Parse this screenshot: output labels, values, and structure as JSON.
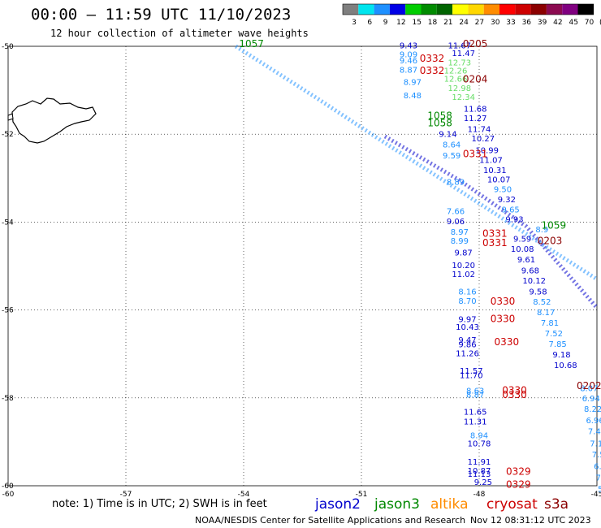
{
  "header": {
    "title": "00:00 – 11:59 UTC 11/10/2023",
    "subtitle": "12 hour collection of altimeter wave heights"
  },
  "colorbar": {
    "labels": [
      "3",
      "6",
      "9",
      "12",
      "15",
      "18",
      "21",
      "24",
      "27",
      "30",
      "33",
      "36",
      "39",
      "42",
      "45",
      "70",
      "(ft)"
    ],
    "colors": [
      "#7f7f7f",
      "#00e5ee",
      "#1e90ff",
      "#0000e6",
      "#00cd00",
      "#008b00",
      "#006400",
      "#ffff00",
      "#ffd700",
      "#ff8c00",
      "#ff0000",
      "#cd0000",
      "#8b0000",
      "#8b0a50",
      "#800080",
      "#000000"
    ]
  },
  "footer": {
    "note": "note:  1) Time is in UTC;  2) SWH is in feet",
    "credit": "NOAA/NESDIS Center for Satellite Applications and Research",
    "timestamp": "Nov 12 08:31:12 UTC 2023",
    "satellites": [
      {
        "name": "jason2",
        "color": "#0000cc"
      },
      {
        "name": "jason3",
        "color": "#008800"
      },
      {
        "name": "altika",
        "color": "#ff8c00"
      },
      {
        "name": "cryosat",
        "color": "#cc0000"
      },
      {
        "name": "s3a",
        "color": "#8b0000"
      }
    ]
  },
  "chart_data": {
    "type": "scatter",
    "title": "00:00 – 11:59 UTC 11/10/2023",
    "xlim": [
      -60,
      -45
    ],
    "ylim": [
      -60,
      -50
    ],
    "xticks": [
      -60,
      -57,
      -54,
      -51,
      -48,
      -45
    ],
    "yticks": [
      -60,
      -58,
      -56,
      -54,
      -52,
      -50
    ],
    "tick_labels_x": [
      "-60",
      "-57",
      "-54",
      "-51",
      "-48",
      "-45"
    ],
    "tick_labels_y": [
      "-60",
      "-58",
      "-56",
      "-54",
      "-52",
      "-50"
    ],
    "grid": true,
    "point_labels": [
      {
        "x": -49.8,
        "y": -50.05,
        "text": "9.43",
        "color": "#0000cc"
      },
      {
        "x": -48.5,
        "y": -50.05,
        "text": "11.67",
        "color": "#0000cc"
      },
      {
        "x": -48.4,
        "y": -50.22,
        "text": "11.47",
        "color": "#0000cc"
      },
      {
        "x": -49.8,
        "y": -50.25,
        "text": "9.09",
        "color": "#1e90ff"
      },
      {
        "x": -49.8,
        "y": -50.39,
        "text": "9.46",
        "color": "#1e90ff"
      },
      {
        "x": -49.8,
        "y": -50.6,
        "text": "8.87",
        "color": "#1e90ff"
      },
      {
        "x": -49.7,
        "y": -50.88,
        "text": "8.97",
        "color": "#1e90ff"
      },
      {
        "x": -49.7,
        "y": -51.18,
        "text": "8.48",
        "color": "#1e90ff"
      },
      {
        "x": -48.5,
        "y": -50.43,
        "text": "12.73",
        "color": "#66dd66"
      },
      {
        "x": -48.6,
        "y": -50.62,
        "text": "12.26",
        "color": "#66dd66"
      },
      {
        "x": -48.6,
        "y": -50.8,
        "text": "12.66",
        "color": "#66dd66"
      },
      {
        "x": -48.5,
        "y": -51.02,
        "text": "12.98",
        "color": "#66dd66"
      },
      {
        "x": -48.4,
        "y": -51.22,
        "text": "12.34",
        "color": "#66dd66"
      },
      {
        "x": -48.1,
        "y": -51.49,
        "text": "11.68",
        "color": "#0000cc"
      },
      {
        "x": -48.1,
        "y": -51.7,
        "text": "11.27",
        "color": "#0000cc"
      },
      {
        "x": -48.0,
        "y": -51.95,
        "text": "11.74",
        "color": "#0000cc"
      },
      {
        "x": -47.9,
        "y": -52.16,
        "text": "10.27",
        "color": "#0000cc"
      },
      {
        "x": -47.8,
        "y": -52.43,
        "text": "10.99",
        "color": "#0000cc"
      },
      {
        "x": -47.7,
        "y": -52.65,
        "text": "11.07",
        "color": "#0000cc"
      },
      {
        "x": -47.6,
        "y": -52.88,
        "text": "10.31",
        "color": "#0000cc"
      },
      {
        "x": -47.5,
        "y": -53.1,
        "text": "10.07",
        "color": "#0000cc"
      },
      {
        "x": -47.4,
        "y": -53.32,
        "text": "9.50",
        "color": "#1e90ff"
      },
      {
        "x": -47.3,
        "y": -53.55,
        "text": "9.32",
        "color": "#0000cc"
      },
      {
        "x": -47.2,
        "y": -53.78,
        "text": "9.65",
        "color": "#1e90ff"
      },
      {
        "x": -47.1,
        "y": -54.0,
        "text": "9.93",
        "color": "#0000cc"
      },
      {
        "x": -46.4,
        "y": -54.23,
        "text": "8.9",
        "color": "#1e90ff"
      },
      {
        "x": -46.9,
        "y": -54.45,
        "text": "9.59",
        "color": "#0000cc"
      },
      {
        "x": -46.9,
        "y": -54.68,
        "text": "10.08",
        "color": "#0000cc"
      },
      {
        "x": -46.8,
        "y": -54.92,
        "text": "9.61",
        "color": "#0000cc"
      },
      {
        "x": -46.7,
        "y": -55.17,
        "text": "9.68",
        "color": "#0000cc"
      },
      {
        "x": -46.6,
        "y": -55.4,
        "text": "10.12",
        "color": "#0000cc"
      },
      {
        "x": -46.5,
        "y": -55.65,
        "text": "9.58",
        "color": "#0000cc"
      },
      {
        "x": -46.4,
        "y": -55.88,
        "text": "8.52",
        "color": "#1e90ff"
      },
      {
        "x": -46.3,
        "y": -56.12,
        "text": "8.17",
        "color": "#1e90ff"
      },
      {
        "x": -46.2,
        "y": -56.36,
        "text": "7.81",
        "color": "#1e90ff"
      },
      {
        "x": -46.1,
        "y": -56.6,
        "text": "7.52",
        "color": "#1e90ff"
      },
      {
        "x": -46.0,
        "y": -56.84,
        "text": "7.85",
        "color": "#1e90ff"
      },
      {
        "x": -45.9,
        "y": -57.08,
        "text": "9.18",
        "color": "#0000cc"
      },
      {
        "x": -45.8,
        "y": -57.32,
        "text": "10.68",
        "color": "#0000cc"
      },
      {
        "x": -48.8,
        "y": -52.06,
        "text": "9.14",
        "color": "#0000cc"
      },
      {
        "x": -48.7,
        "y": -52.3,
        "text": "8.64",
        "color": "#1e90ff"
      },
      {
        "x": -48.7,
        "y": -52.55,
        "text": "9.59",
        "color": "#1e90ff"
      },
      {
        "x": -48.6,
        "y": -53.15,
        "text": "8.89",
        "color": "#1e90ff"
      },
      {
        "x": -48.6,
        "y": -53.82,
        "text": "7.66",
        "color": "#1e90ff"
      },
      {
        "x": -48.6,
        "y": -54.05,
        "text": "9.06",
        "color": "#0000cc"
      },
      {
        "x": -48.5,
        "y": -54.29,
        "text": "8.97",
        "color": "#1e90ff"
      },
      {
        "x": -48.5,
        "y": -54.49,
        "text": "8.99",
        "color": "#1e90ff"
      },
      {
        "x": -48.4,
        "y": -54.76,
        "text": "9.87",
        "color": "#0000cc"
      },
      {
        "x": -48.4,
        "y": -55.05,
        "text": "10.20",
        "color": "#0000cc"
      },
      {
        "x": -48.4,
        "y": -55.25,
        "text": "11.02",
        "color": "#0000cc"
      },
      {
        "x": -48.3,
        "y": -55.65,
        "text": "8.16",
        "color": "#1e90ff"
      },
      {
        "x": -48.3,
        "y": -55.86,
        "text": "8.70",
        "color": "#1e90ff"
      },
      {
        "x": -48.3,
        "y": -56.28,
        "text": "9.97",
        "color": "#0000cc"
      },
      {
        "x": -48.3,
        "y": -56.45,
        "text": "10.43",
        "color": "#0000cc"
      },
      {
        "x": -48.3,
        "y": -56.75,
        "text": "9.47",
        "color": "#0000cc"
      },
      {
        "x": -48.3,
        "y": -56.85,
        "text": "9.86",
        "color": "#0000cc"
      },
      {
        "x": -48.3,
        "y": -57.05,
        "text": "11.26",
        "color": "#0000cc"
      },
      {
        "x": -48.2,
        "y": -57.45,
        "text": "11.57",
        "color": "#0000cc"
      },
      {
        "x": -48.2,
        "y": -57.55,
        "text": "11.70",
        "color": "#0000cc"
      },
      {
        "x": -48.1,
        "y": -57.9,
        "text": "8.63",
        "color": "#1e90ff"
      },
      {
        "x": -48.1,
        "y": -57.99,
        "text": "8.87",
        "color": "#1e90ff"
      },
      {
        "x": -48.1,
        "y": -58.38,
        "text": "11.65",
        "color": "#0000cc"
      },
      {
        "x": -48.1,
        "y": -58.6,
        "text": "11.31",
        "color": "#0000cc"
      },
      {
        "x": -48.0,
        "y": -58.92,
        "text": "8.94",
        "color": "#1e90ff"
      },
      {
        "x": -48.0,
        "y": -59.1,
        "text": "10.78",
        "color": "#0000cc"
      },
      {
        "x": -48.0,
        "y": -59.52,
        "text": "11.91",
        "color": "#0000cc"
      },
      {
        "x": -48.0,
        "y": -59.72,
        "text": "10.87",
        "color": "#0000cc"
      },
      {
        "x": -48.0,
        "y": -59.8,
        "text": "11.13",
        "color": "#0000cc"
      },
      {
        "x": -47.9,
        "y": -59.98,
        "text": "9.25",
        "color": "#0000cc"
      },
      {
        "x": -45.2,
        "y": -57.85,
        "text": "8.07",
        "color": "#1e90ff"
      },
      {
        "x": -45.15,
        "y": -58.08,
        "text": "6.94",
        "color": "#1e90ff"
      },
      {
        "x": -45.1,
        "y": -58.32,
        "text": "8.22",
        "color": "#1e90ff"
      },
      {
        "x": -45.05,
        "y": -58.58,
        "text": "6.96",
        "color": "#1e90ff"
      },
      {
        "x": -45.0,
        "y": -58.83,
        "text": "7.40",
        "color": "#1e90ff"
      },
      {
        "x": -44.95,
        "y": -59.1,
        "text": "7.14",
        "color": "#1e90ff"
      },
      {
        "x": -44.9,
        "y": -59.35,
        "text": "7.57",
        "color": "#1e90ff"
      },
      {
        "x": -44.85,
        "y": -59.62,
        "text": "6.75",
        "color": "#1e90ff"
      },
      {
        "x": -44.8,
        "y": -59.88,
        "text": "7.15",
        "color": "#1e90ff"
      },
      {
        "x": -44.75,
        "y": -60.14,
        "text": "5.87",
        "color": "#1e90ff"
      }
    ],
    "pass_labels": [
      {
        "x": -53.8,
        "y": -50.02,
        "text": "1057",
        "color": "#008800"
      },
      {
        "x": -48.1,
        "y": -50.02,
        "text": "0205",
        "color": "#8b0000"
      },
      {
        "x": -49.2,
        "y": -50.35,
        "text": "0332",
        "color": "#cc0000"
      },
      {
        "x": -49.2,
        "y": -50.63,
        "text": "0332",
        "color": "#cc0000"
      },
      {
        "x": -48.1,
        "y": -50.82,
        "text": "0204",
        "color": "#8b0000"
      },
      {
        "x": -49.0,
        "y": -51.65,
        "text": "1058",
        "color": "#008800"
      },
      {
        "x": -49.0,
        "y": -51.82,
        "text": "1058",
        "color": "#008800"
      },
      {
        "x": -48.1,
        "y": -52.52,
        "text": "0331",
        "color": "#cc0000"
      },
      {
        "x": -46.1,
        "y": -54.15,
        "text": "1059",
        "color": "#008800"
      },
      {
        "x": -46.2,
        "y": -54.5,
        "text": "0203",
        "color": "#8b0000"
      },
      {
        "x": -47.6,
        "y": -54.33,
        "text": "0331",
        "color": "#cc0000"
      },
      {
        "x": -47.6,
        "y": -54.55,
        "text": "0331",
        "color": "#cc0000"
      },
      {
        "x": -47.4,
        "y": -55.88,
        "text": "0330",
        "color": "#cc0000"
      },
      {
        "x": -47.4,
        "y": -56.28,
        "text": "0330",
        "color": "#cc0000"
      },
      {
        "x": -47.3,
        "y": -56.8,
        "text": "0330",
        "color": "#cc0000"
      },
      {
        "x": -47.1,
        "y": -57.9,
        "text": "0330",
        "color": "#cc0000"
      },
      {
        "x": -47.1,
        "y": -58.0,
        "text": "0330",
        "color": "#cc0000"
      },
      {
        "x": -45.2,
        "y": -57.8,
        "text": "0202",
        "color": "#8b0000"
      },
      {
        "x": -47.0,
        "y": -59.75,
        "text": "0329",
        "color": "#cc0000"
      },
      {
        "x": -47.0,
        "y": -60.05,
        "text": "0329",
        "color": "#cc0000"
      }
    ],
    "tracks": [
      {
        "name": "descending track A",
        "color": "#1e90ff",
        "points": [
          [
            -54.2,
            -50.0
          ],
          [
            -52.1,
            -51.2
          ],
          [
            -50.4,
            -52.2
          ],
          [
            -48.3,
            -53.4
          ],
          [
            -46.4,
            -54.5
          ],
          [
            -45.0,
            -55.3
          ]
        ]
      },
      {
        "name": "descending track B",
        "color": "#0000cc",
        "points": [
          [
            -50.4,
            -52.05
          ],
          [
            -48.5,
            -53.05
          ],
          [
            -46.8,
            -54.1
          ],
          [
            -45.0,
            -55.95
          ]
        ]
      }
    ]
  }
}
